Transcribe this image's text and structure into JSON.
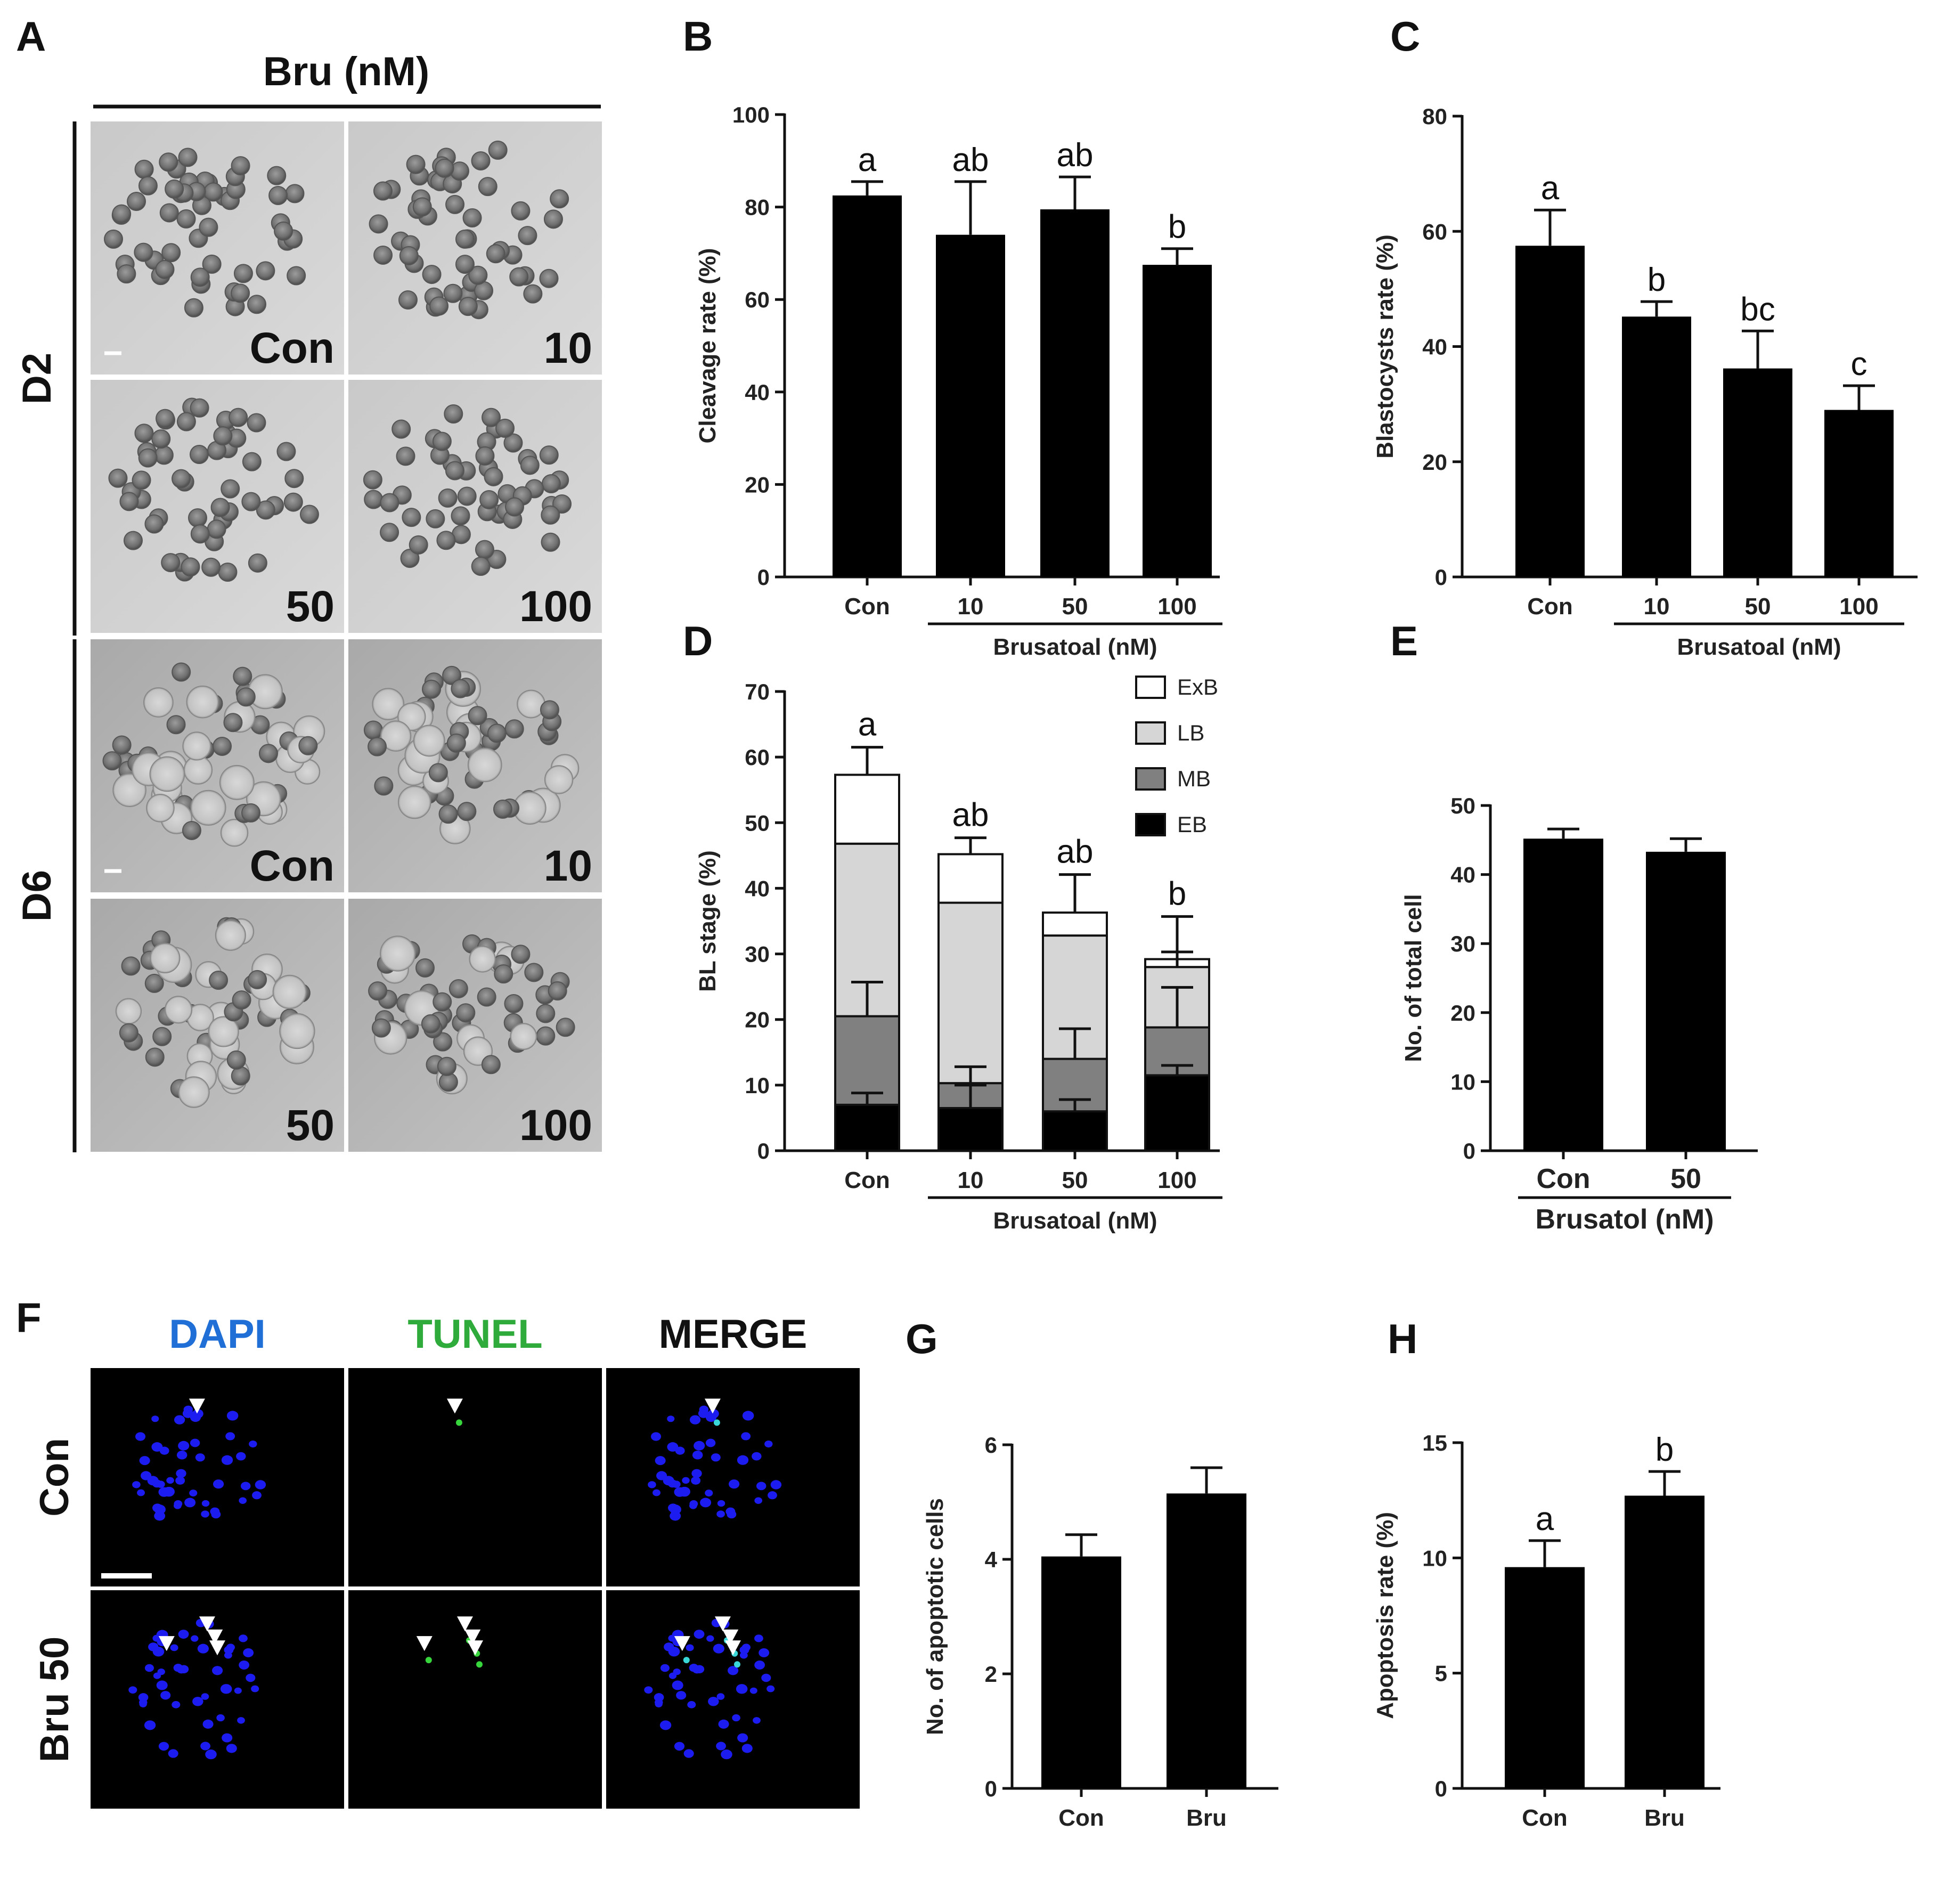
{
  "panel_letters": [
    "A",
    "B",
    "C",
    "D",
    "E",
    "F",
    "G",
    "H"
  ],
  "panel_a": {
    "title": "Bru (nM)",
    "rows": [
      "D2",
      "D6"
    ],
    "images": [
      {
        "row": 0,
        "label": "Con"
      },
      {
        "row": 0,
        "label": "10"
      },
      {
        "row": 0,
        "label": "50"
      },
      {
        "row": 0,
        "label": "100"
      },
      {
        "row": 1,
        "label": "Con"
      },
      {
        "row": 1,
        "label": "10"
      },
      {
        "row": 1,
        "label": "50"
      },
      {
        "row": 1,
        "label": "100"
      }
    ]
  },
  "panel_f": {
    "columns": [
      "DAPI",
      "TUNEL",
      "MERGE"
    ],
    "column_colors": [
      "#1f6fd6",
      "#2eab3b",
      "#111111"
    ],
    "rows": [
      "Con",
      "Bru 50"
    ]
  },
  "colors": {
    "bar": "#000000",
    "ExB": "#ffffff",
    "LB": "#d6d6d6",
    "MB": "#808080",
    "EB": "#000000"
  },
  "chart_data": [
    {
      "panel": "B",
      "type": "bar",
      "categories": [
        "Con",
        "10",
        "50",
        "100"
      ],
      "values": [
        82.5,
        74,
        79.5,
        67.5
      ],
      "errors": [
        3,
        11.5,
        7,
        3.5
      ],
      "letters": [
        "a",
        "ab",
        "ab",
        "b"
      ],
      "ylabel": "Cleavage rate (%)",
      "group_label": "Brusatoal (nM)",
      "ylim": [
        0,
        100
      ],
      "yticks": [
        0,
        20,
        40,
        60,
        80,
        100
      ]
    },
    {
      "panel": "C",
      "type": "bar",
      "categories": [
        "Con",
        "10",
        "50",
        "100"
      ],
      "values": [
        57.5,
        45.2,
        36.2,
        29
      ],
      "errors": [
        6.2,
        2.6,
        6.5,
        4.2
      ],
      "letters": [
        "a",
        "b",
        "bc",
        "c"
      ],
      "ylabel": "Blastocysts rate (%)",
      "group_label": "Brusatoal (nM)",
      "ylim": [
        0,
        80
      ],
      "yticks": [
        0,
        20,
        40,
        60,
        80
      ]
    },
    {
      "panel": "D",
      "type": "bar",
      "stacked": true,
      "categories": [
        "Con",
        "10",
        "50",
        "100"
      ],
      "series": [
        {
          "name": "EB",
          "values": [
            7,
            6.5,
            6,
            11.5
          ],
          "errors": [
            1.8,
            3.5,
            1.8,
            1.5
          ]
        },
        {
          "name": "MB",
          "values": [
            13.5,
            3.8,
            8,
            7.3
          ],
          "errors": [
            5.2,
            2.5,
            4.6,
            6.1
          ]
        },
        {
          "name": "LB",
          "values": [
            26.3,
            27.5,
            18.8,
            9.2
          ],
          "errors": [
            0,
            0,
            0,
            2.3
          ]
        },
        {
          "name": "ExB",
          "values": [
            10.5,
            7.4,
            3.5,
            1.2
          ],
          "errors": [
            4.2,
            2.5,
            5.8,
            6.5
          ]
        }
      ],
      "letters": [
        "a",
        "ab",
        "ab",
        "b"
      ],
      "ylabel": "BL stage (%)",
      "group_label": "Brusatoal (nM)",
      "legend_order": [
        "ExB",
        "LB",
        "MB",
        "EB"
      ],
      "ylim": [
        0,
        70
      ],
      "yticks": [
        0,
        10,
        20,
        30,
        40,
        50,
        60,
        70
      ]
    },
    {
      "panel": "E",
      "type": "bar",
      "categories": [
        "Con",
        "50"
      ],
      "values": [
        45.2,
        43.3
      ],
      "errors": [
        1.4,
        1.9
      ],
      "letters": [
        "",
        ""
      ],
      "ylabel": "No. of total cell",
      "group_label": "Brusatol (nM)",
      "ylim": [
        0,
        50
      ],
      "yticks": [
        0,
        10,
        20,
        30,
        40,
        50
      ]
    },
    {
      "panel": "G",
      "type": "bar",
      "categories": [
        "Con",
        "Bru"
      ],
      "values": [
        4.05,
        5.15
      ],
      "errors": [
        0.38,
        0.45
      ],
      "letters": [
        "",
        ""
      ],
      "ylabel": "No. of apoptotic cells",
      "group_label": "",
      "ylim": [
        0,
        6
      ],
      "yticks": [
        0,
        2,
        4,
        6
      ]
    },
    {
      "panel": "H",
      "type": "bar",
      "categories": [
        "Con",
        "Bru"
      ],
      "values": [
        9.6,
        12.7
      ],
      "errors": [
        1.15,
        1.05
      ],
      "letters": [
        "a",
        "b"
      ],
      "ylabel": "Apoptosis rate (%)",
      "group_label": "",
      "ylim": [
        0,
        15
      ],
      "yticks": [
        0,
        5,
        10,
        15
      ]
    }
  ]
}
